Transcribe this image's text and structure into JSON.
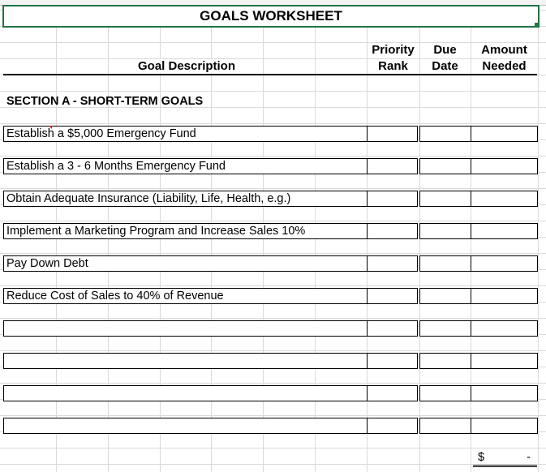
{
  "title": "GOALS WORKSHEET",
  "headers": {
    "goal": "Goal Description",
    "priority1": "Priority",
    "priority2": "Rank",
    "due1": "Due",
    "due2": "Date",
    "amount1": "Amount",
    "amount2": "Needed"
  },
  "section_a": "SECTION A - SHORT-TERM GOALS",
  "goals": [
    "Establish a $5,000 Emergency Fund",
    "Establish a 3 - 6 Months Emergency Fund",
    "Obtain Adequate Insurance (Liability, Life, Health, e.g.)",
    "Implement a Marketing Program and Increase Sales 10%",
    "Pay Down Debt",
    "Reduce Cost of Sales to 40% of Revenue",
    "",
    "",
    "",
    ""
  ],
  "total": {
    "currency": "$",
    "value": "-"
  },
  "colors": {
    "selection": "#217346"
  }
}
